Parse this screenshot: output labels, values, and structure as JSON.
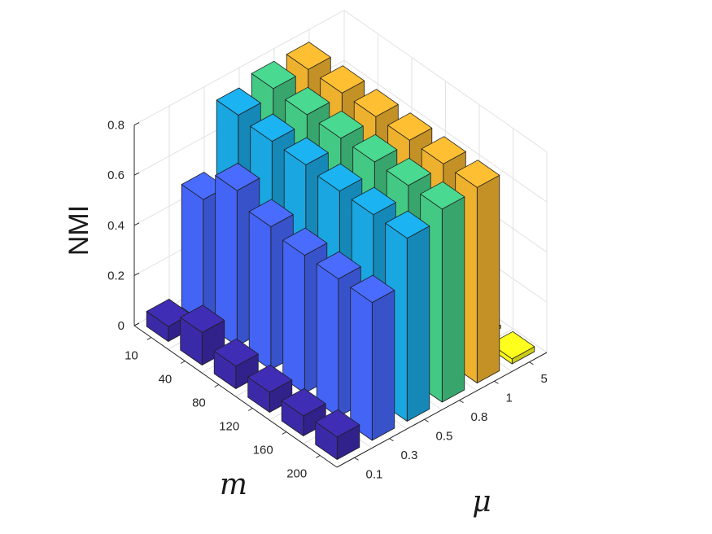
{
  "chart_data": {
    "type": "bar3d",
    "title": "",
    "zlabel": "NMI",
    "xlabel": "m",
    "ylabel": "μ",
    "zlim": [
      0,
      0.8
    ],
    "z_ticks": [
      "0",
      "0.2",
      "0.4",
      "0.6",
      "0.8"
    ],
    "m_categories": [
      "10",
      "40",
      "80",
      "120",
      "160",
      "200"
    ],
    "mu_categories": [
      "0.1",
      "0.3",
      "0.5",
      "0.8",
      "1",
      "5"
    ],
    "colors": [
      "#3b2aa8",
      "#4464f6",
      "#1aa6e0",
      "#44c985",
      "#eeb12e",
      "#f7f71c"
    ],
    "series": [
      {
        "mu": "0.1",
        "values": [
          0.06,
          0.13,
          0.09,
          0.08,
          0.08,
          0.09
        ]
      },
      {
        "mu": "0.3",
        "values": [
          0.49,
          0.62,
          0.57,
          0.55,
          0.55,
          0.55
        ]
      },
      {
        "mu": "0.5",
        "values": [
          0.75,
          0.74,
          0.74,
          0.73,
          0.73,
          0.73
        ]
      },
      {
        "mu": "0.8",
        "values": [
          0.78,
          0.77,
          0.77,
          0.77,
          0.77,
          0.77
        ]
      },
      {
        "mu": "1",
        "values": [
          0.78,
          0.78,
          0.78,
          0.78,
          0.78,
          0.78
        ]
      },
      {
        "mu": "5",
        "values": [
          0.0,
          0.0,
          0.0,
          0.0,
          0.01,
          0.02
        ]
      }
    ],
    "grid": true
  }
}
